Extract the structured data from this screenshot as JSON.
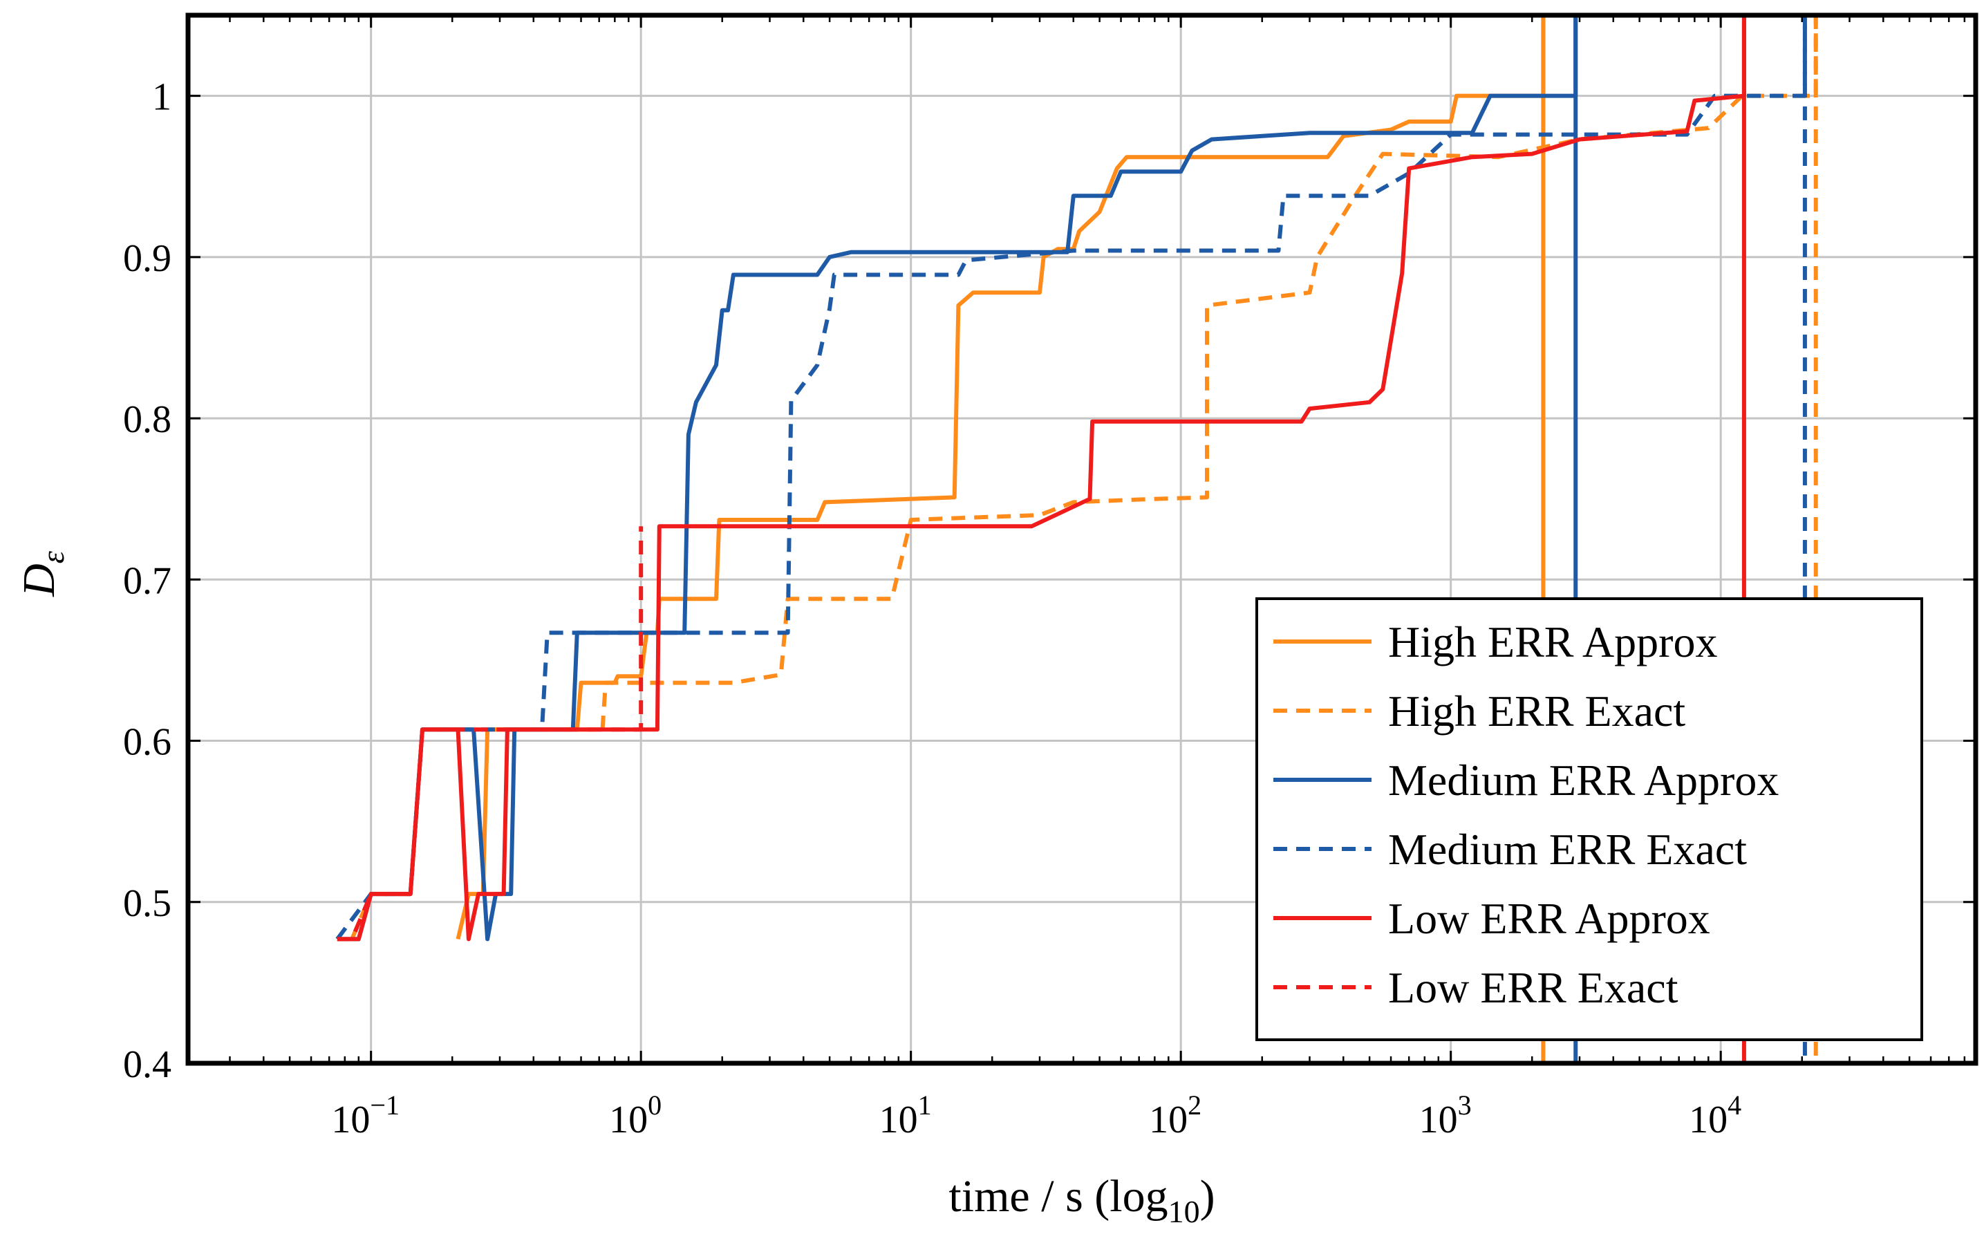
{
  "chart_data": {
    "type": "line",
    "xscale": "log10",
    "xlim": [
      0.021,
      88000
    ],
    "ylim": [
      0.4,
      1.05
    ],
    "xlabel": {
      "main": "time / s (log",
      "sub": "10",
      "close": ")"
    },
    "ylabel": {
      "main": "D",
      "sub": "ε"
    },
    "grid": true,
    "legend_position": "bottom-right",
    "x_ticks": [
      {
        "value": 0.1,
        "base": "10",
        "exp": "−1"
      },
      {
        "value": 1,
        "base": "10",
        "exp": "0"
      },
      {
        "value": 10,
        "base": "10",
        "exp": "1"
      },
      {
        "value": 100,
        "base": "10",
        "exp": "2"
      },
      {
        "value": 1000,
        "base": "10",
        "exp": "3"
      },
      {
        "value": 10000,
        "base": "10",
        "exp": "4"
      }
    ],
    "y_ticks": [
      {
        "value": 0.4,
        "label": "0.4"
      },
      {
        "value": 0.5,
        "label": "0.5"
      },
      {
        "value": 0.6,
        "label": "0.6"
      },
      {
        "value": 0.7,
        "label": "0.7"
      },
      {
        "value": 0.8,
        "label": "0.8"
      },
      {
        "value": 0.9,
        "label": "0.9"
      },
      {
        "value": 1.0,
        "label": "1"
      }
    ],
    "series": [
      {
        "name": "High ERR Approx",
        "color": "#ff8c1a",
        "dash": false,
        "points": [
          [
            0.21,
            0.477
          ],
          [
            0.23,
            0.505
          ],
          [
            0.26,
            0.505
          ],
          [
            0.27,
            0.607
          ],
          [
            0.58,
            0.607
          ],
          [
            0.6,
            0.636
          ],
          [
            0.8,
            0.636
          ],
          [
            0.82,
            0.64
          ],
          [
            1.0,
            0.64
          ],
          [
            1.05,
            0.667
          ],
          [
            1.15,
            0.667
          ],
          [
            1.17,
            0.688
          ],
          [
            1.9,
            0.688
          ],
          [
            1.95,
            0.737
          ],
          [
            4.5,
            0.737
          ],
          [
            4.8,
            0.748
          ],
          [
            14.5,
            0.751
          ],
          [
            15,
            0.87
          ],
          [
            17,
            0.878
          ],
          [
            30,
            0.878
          ],
          [
            31,
            0.9
          ],
          [
            35,
            0.905
          ],
          [
            40,
            0.905
          ],
          [
            42,
            0.916
          ],
          [
            50,
            0.928
          ],
          [
            58,
            0.955
          ],
          [
            63,
            0.962
          ],
          [
            350,
            0.962
          ],
          [
            400,
            0.975
          ],
          [
            600,
            0.979
          ],
          [
            700,
            0.984
          ],
          [
            1000,
            0.984
          ],
          [
            1050,
            1.0
          ],
          [
            2200,
            1.0
          ],
          [
            2200,
            1.05
          ]
        ],
        "vline": 2200
      },
      {
        "name": "High ERR Exact",
        "color": "#ff8c1a",
        "dash": true,
        "points": [
          [
            0.085,
            0.477
          ],
          [
            0.1,
            0.505
          ],
          [
            0.14,
            0.505
          ],
          [
            0.155,
            0.607
          ],
          [
            0.72,
            0.607
          ],
          [
            0.74,
            0.636
          ],
          [
            2.2,
            0.636
          ],
          [
            3.3,
            0.641
          ],
          [
            3.5,
            0.688
          ],
          [
            8.5,
            0.688
          ],
          [
            10,
            0.737
          ],
          [
            30,
            0.74
          ],
          [
            40,
            0.748
          ],
          [
            80,
            0.75
          ],
          [
            125,
            0.751
          ],
          [
            125,
            0.87
          ],
          [
            300,
            0.878
          ],
          [
            320,
            0.9
          ],
          [
            450,
            0.94
          ],
          [
            560,
            0.964
          ],
          [
            1500,
            0.962
          ],
          [
            3000,
            0.973
          ],
          [
            9000,
            0.98
          ],
          [
            12000,
            1.0
          ],
          [
            22500,
            1.0
          ],
          [
            22500,
            1.05
          ]
        ],
        "vline": 22500
      },
      {
        "name": "Medium ERR Approx",
        "color": "#1f5aa6",
        "dash": false,
        "points": [
          [
            0.075,
            0.477
          ],
          [
            0.09,
            0.477
          ],
          [
            0.1,
            0.505
          ],
          [
            0.14,
            0.505
          ],
          [
            0.155,
            0.607
          ],
          [
            0.24,
            0.607
          ],
          [
            0.27,
            0.477
          ],
          [
            0.29,
            0.505
          ],
          [
            0.33,
            0.505
          ],
          [
            0.34,
            0.607
          ],
          [
            0.56,
            0.607
          ],
          [
            0.58,
            0.667
          ],
          [
            1.45,
            0.667
          ],
          [
            1.5,
            0.79
          ],
          [
            1.6,
            0.81
          ],
          [
            1.9,
            0.833
          ],
          [
            2.0,
            0.867
          ],
          [
            2.1,
            0.867
          ],
          [
            2.2,
            0.889
          ],
          [
            4.5,
            0.889
          ],
          [
            5,
            0.9
          ],
          [
            6,
            0.903
          ],
          [
            38,
            0.903
          ],
          [
            40,
            0.938
          ],
          [
            55,
            0.938
          ],
          [
            60,
            0.953
          ],
          [
            100,
            0.953
          ],
          [
            110,
            0.966
          ],
          [
            130,
            0.973
          ],
          [
            300,
            0.977
          ],
          [
            1200,
            0.977
          ],
          [
            1400,
            1.0
          ],
          [
            2900,
            1.0
          ],
          [
            2900,
            1.05
          ]
        ],
        "vline": 2900
      },
      {
        "name": "Medium ERR Exact",
        "color": "#1f5aa6",
        "dash": true,
        "points": [
          [
            0.075,
            0.477
          ],
          [
            0.1,
            0.505
          ],
          [
            0.14,
            0.505
          ],
          [
            0.155,
            0.607
          ],
          [
            0.43,
            0.607
          ],
          [
            0.45,
            0.667
          ],
          [
            3.5,
            0.667
          ],
          [
            3.6,
            0.811
          ],
          [
            4.5,
            0.833
          ],
          [
            5,
            0.868
          ],
          [
            5.2,
            0.889
          ],
          [
            15,
            0.889
          ],
          [
            16,
            0.898
          ],
          [
            40,
            0.904
          ],
          [
            230,
            0.904
          ],
          [
            240,
            0.938
          ],
          [
            500,
            0.938
          ],
          [
            700,
            0.952
          ],
          [
            1000,
            0.976
          ],
          [
            7500,
            0.976
          ],
          [
            9500,
            1.0
          ],
          [
            20500,
            1.0
          ],
          [
            20500,
            1.05
          ]
        ],
        "vline": 20500
      },
      {
        "name": "Low ERR Approx",
        "color": "#f01c1c",
        "dash": false,
        "points": [
          [
            0.075,
            0.477
          ],
          [
            0.09,
            0.477
          ],
          [
            0.1,
            0.505
          ],
          [
            0.14,
            0.505
          ],
          [
            0.155,
            0.607
          ],
          [
            0.21,
            0.607
          ],
          [
            0.23,
            0.477
          ],
          [
            0.25,
            0.505
          ],
          [
            0.31,
            0.505
          ],
          [
            0.32,
            0.607
          ],
          [
            1.15,
            0.607
          ],
          [
            1.17,
            0.733
          ],
          [
            28,
            0.733
          ],
          [
            46,
            0.75
          ],
          [
            47,
            0.798
          ],
          [
            280,
            0.798
          ],
          [
            300,
            0.806
          ],
          [
            500,
            0.81
          ],
          [
            560,
            0.818
          ],
          [
            660,
            0.89
          ],
          [
            700,
            0.955
          ],
          [
            1200,
            0.962
          ],
          [
            2000,
            0.964
          ],
          [
            3000,
            0.973
          ],
          [
            7500,
            0.978
          ],
          [
            8000,
            0.997
          ],
          [
            12200,
            1.0
          ],
          [
            12200,
            1.05
          ]
        ],
        "vline": 12200
      },
      {
        "name": "Low ERR Exact",
        "color": "#f01c1c",
        "dash": true,
        "points": [
          [
            0.075,
            0.477
          ],
          [
            0.085,
            0.477
          ],
          [
            0.1,
            0.505
          ],
          [
            0.14,
            0.505
          ],
          [
            0.155,
            0.607
          ],
          [
            1.0,
            0.607
          ],
          [
            1.0,
            0.733
          ]
        ],
        "vline": null
      }
    ]
  }
}
